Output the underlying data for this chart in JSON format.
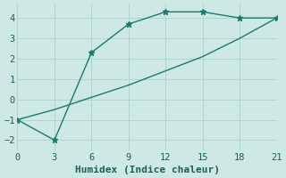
{
  "line1_x": [
    0,
    3,
    6,
    9,
    12,
    15,
    18,
    21
  ],
  "line1_y": [
    -1,
    -2,
    2.3,
    3.7,
    4.3,
    4.3,
    4.0,
    4.0
  ],
  "line2_x": [
    0,
    3,
    6,
    9,
    12,
    15,
    18,
    21
  ],
  "line2_y": [
    -1,
    -0.5,
    0.1,
    0.7,
    1.4,
    2.1,
    3.0,
    4.0
  ],
  "line_color": "#1a7a6e",
  "marker": "*",
  "xlabel": "Humidex (Indice chaleur)",
  "xlim": [
    0,
    21
  ],
  "ylim": [
    -2.5,
    4.7
  ],
  "xticks": [
    0,
    3,
    6,
    9,
    12,
    15,
    18,
    21
  ],
  "yticks": [
    -2,
    -1,
    0,
    1,
    2,
    3,
    4
  ],
  "bg_color": "#cde8e5",
  "grid_color": "#b0d4d0",
  "font_color": "#1a5f58",
  "xlabel_fontsize": 8,
  "tick_fontsize": 7.5
}
